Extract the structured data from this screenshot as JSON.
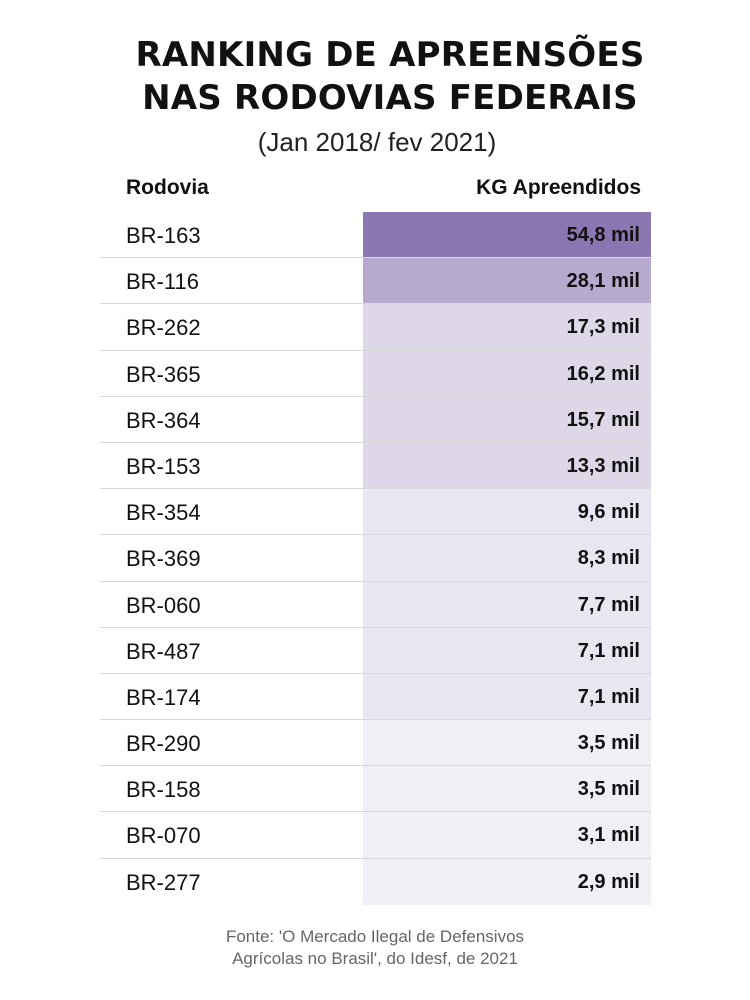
{
  "title": {
    "line1": "RANKING DE APREENSÕES",
    "line2": "NAS RODOVIAS FEDERAIS"
  },
  "subtitle": "(Jan 2018/ fev 2021)",
  "source": {
    "line1": "Fonte: 'O Mercado Ilegal de Defensivos",
    "line2": "Agrícolas no Brasil', do Idesf, de 2021"
  },
  "colors": {
    "scale_dark": "#8b76b1",
    "scale_light": "#f4f2f8",
    "divider": "#d9d9d9"
  },
  "chart_data": {
    "type": "table",
    "title": "RANKING DE APREENSÕES NAS RODOVIAS FEDERAIS",
    "subtitle": "(Jan 2018/ fev 2021)",
    "columns": [
      "Rodovia",
      "KG Apreendidos"
    ],
    "rows": [
      {
        "rodovia": "BR-163",
        "value": 54.8,
        "label": "54,8 mil"
      },
      {
        "rodovia": "BR-116",
        "value": 28.1,
        "label": "28,1 mil"
      },
      {
        "rodovia": "BR-262",
        "value": 17.3,
        "label": "17,3 mil"
      },
      {
        "rodovia": "BR-365",
        "value": 16.2,
        "label": "16,2 mil"
      },
      {
        "rodovia": "BR-364",
        "value": 15.7,
        "label": "15,7 mil"
      },
      {
        "rodovia": "BR-153",
        "value": 13.3,
        "label": "13,3 mil"
      },
      {
        "rodovia": "BR-354",
        "value": 9.6,
        "label": "9,6 mil"
      },
      {
        "rodovia": "BR-369",
        "value": 8.3,
        "label": "8,3 mil"
      },
      {
        "rodovia": "BR-060",
        "value": 7.7,
        "label": "7,7 mil"
      },
      {
        "rodovia": "BR-487",
        "value": 7.1,
        "label": "7,1 mil"
      },
      {
        "rodovia": "BR-174",
        "value": 7.1,
        "label": "7,1 mil"
      },
      {
        "rodovia": "BR-290",
        "value": 3.5,
        "label": "3,5 mil"
      },
      {
        "rodovia": "BR-158",
        "value": 3.5,
        "label": "3,5 mil"
      },
      {
        "rodovia": "BR-070",
        "value": 3.1,
        "label": "3,1 mil"
      },
      {
        "rodovia": "BR-277",
        "value": 2.9,
        "label": "2,9 mil"
      }
    ],
    "unit": "mil kg"
  }
}
